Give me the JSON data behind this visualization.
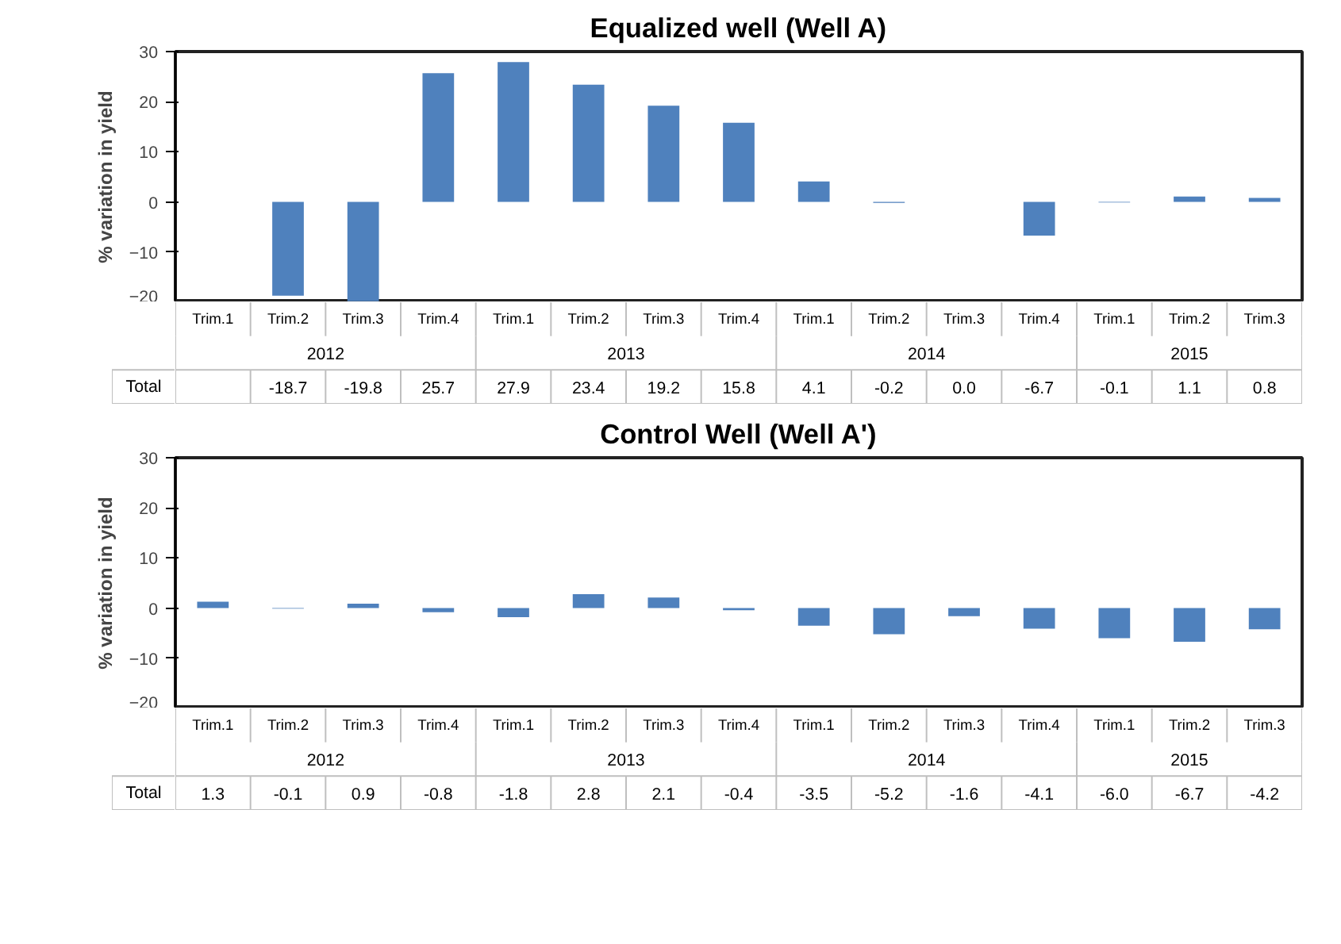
{
  "chart_data": [
    {
      "type": "bar",
      "title": "Equalized well (Well A)",
      "ylabel": "% variation in yield",
      "categories": [
        "Trim.1",
        "Trim.2",
        "Trim.3",
        "Trim.4",
        "Trim.1",
        "Trim.2",
        "Trim.3",
        "Trim.4",
        "Trim.1",
        "Trim.2",
        "Trim.3",
        "Trim.4",
        "Trim.1",
        "Trim.2",
        "Trim.3"
      ],
      "values": [
        null,
        -18.7,
        -19.8,
        25.7,
        27.9,
        23.4,
        19.2,
        15.8,
        4.1,
        -0.2,
        0.0,
        -6.7,
        -0.1,
        1.1,
        0.8
      ],
      "value_labels": [
        null,
        "-18.7",
        "-19.8",
        "25.7",
        "27.9",
        "23.4",
        "19.2",
        "15.8",
        "4.1",
        "-0.2",
        "0.0",
        "-6.7",
        "-0.1",
        "1.1",
        "0.8"
      ],
      "color": "#4f81bd",
      "ylim": [
        -20,
        30
      ],
      "yticks": [
        -20,
        -10,
        0,
        10,
        20,
        30
      ],
      "annotations": [
        "Total",
        "2012",
        "2013",
        "2014",
        "2015"
      ]
    },
    {
      "type": "bar",
      "title": "Control Well (Well A')",
      "ylabel": "% variation in yield",
      "categories": [
        "Trim.1",
        "Trim.2",
        "Trim.3",
        "Trim.4",
        "Trim.1",
        "Trim.2",
        "Trim.3",
        "Trim.4",
        "Trim.1",
        "Trim.2",
        "Trim.3",
        "Trim.4",
        "Trim.1",
        "Trim.2",
        "Trim.3"
      ],
      "values": [
        1.3,
        -0.1,
        0.9,
        -0.8,
        -1.8,
        2.8,
        2.1,
        -0.4,
        -3.5,
        -5.2,
        -1.6,
        -4.1,
        -6.0,
        -6.7,
        -4.2
      ],
      "value_labels": [
        "1.3",
        "-0.1",
        "0.9",
        "-0.8",
        "-1.8",
        "2.8",
        "2.1",
        "-0.4",
        "-3.5",
        "-5.2",
        "-1.6",
        "-4.1",
        "-6.0",
        "-6.7",
        "-4.2"
      ],
      "color": "#4f81bd",
      "ylim": [
        -20,
        30
      ],
      "yticks": [
        -20,
        -10,
        0,
        10,
        20,
        30
      ],
      "annotations": [
        "Total",
        "2012",
        "2013",
        "2014",
        "2015"
      ]
    }
  ]
}
